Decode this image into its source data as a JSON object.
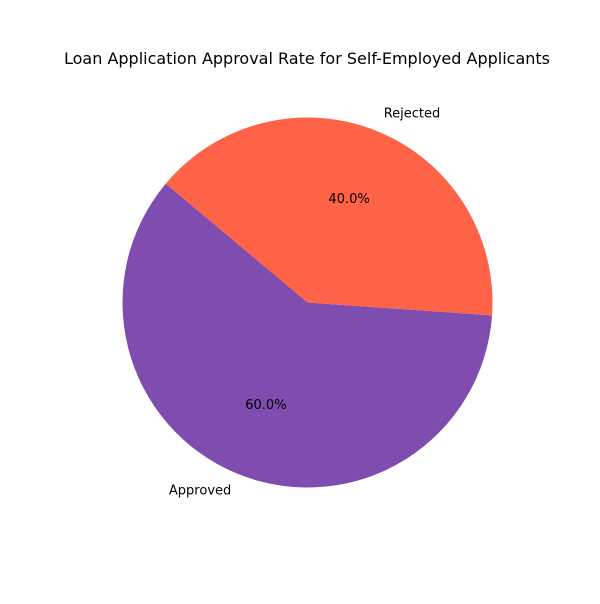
{
  "chart_data": {
    "type": "pie",
    "title": "Loan Application Approval Rate for Self-Employed Applicants",
    "slices": [
      {
        "label": "Approved",
        "value": 60.0,
        "display": "60.0%",
        "color": "#7f4caf"
      },
      {
        "label": "Rejected",
        "value": 40.0,
        "display": "40.0%",
        "color": "#ff6347"
      }
    ],
    "legend": "none"
  }
}
